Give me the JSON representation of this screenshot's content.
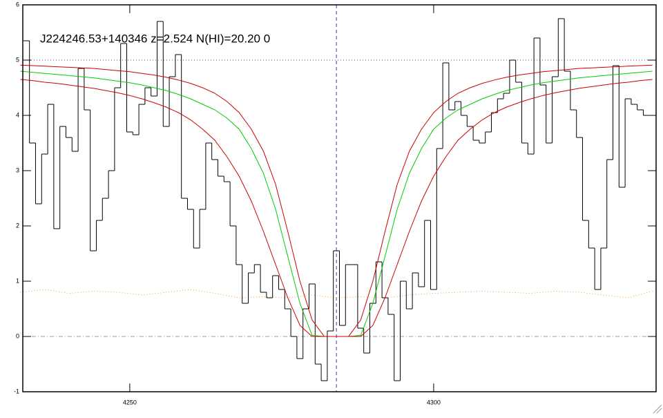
{
  "chart_data": {
    "type": "line",
    "title": "J224246.53+140346 z=2.524 N(HI)=20.20 0",
    "xlim": [
      4232.4,
      4336.6
    ],
    "ylim": [
      -1,
      6
    ],
    "xticks": [
      4250,
      4300
    ],
    "yticks": [
      -1,
      0,
      1,
      2,
      3,
      4,
      5,
      6
    ],
    "flux": {
      "color": "#000000",
      "x": [
        4233,
        4234,
        4235,
        4236,
        4237,
        4238,
        4239,
        4240,
        4241,
        4242,
        4243,
        4244,
        4245,
        4246,
        4247,
        4248,
        4249,
        4250,
        4251,
        4252,
        4253,
        4254,
        4255,
        4256,
        4257,
        4258,
        4259,
        4260,
        4261,
        4262,
        4263,
        4264,
        4265,
        4266,
        4267,
        4268,
        4269,
        4270,
        4271,
        4272,
        4273,
        4274,
        4275,
        4276,
        4277,
        4278,
        4279,
        4280,
        4281,
        4282,
        4283,
        4284,
        4285,
        4286,
        4287,
        4288,
        4289,
        4290,
        4291,
        4292,
        4293,
        4294,
        4295,
        4296,
        4297,
        4298,
        4299,
        4300,
        4301,
        4302,
        4303,
        4304,
        4305,
        4306,
        4307,
        4308,
        4309,
        4310,
        4311,
        4312,
        4313,
        4314,
        4315,
        4316,
        4317,
        4318,
        4319,
        4320,
        4321,
        4322,
        4323,
        4324,
        4325,
        4326,
        4327,
        4328,
        4329,
        4330,
        4331,
        4332,
        4333,
        4334,
        4335,
        4336
      ],
      "values": [
        5.35,
        3.5,
        2.4,
        3.3,
        4.2,
        1.95,
        3.8,
        3.6,
        3.35,
        4.85,
        4.1,
        1.55,
        2.1,
        2.5,
        3.0,
        4.5,
        5.3,
        3.7,
        3.65,
        4.2,
        4.5,
        4.35,
        5.7,
        3.8,
        4.7,
        5.1,
        2.5,
        2.3,
        1.6,
        2.3,
        3.5,
        3.2,
        2.9,
        2.8,
        2.0,
        1.3,
        0.6,
        1.15,
        1.3,
        0.8,
        0.7,
        1.1,
        0.85,
        0.5,
        0.0,
        -0.4,
        0.5,
        0.95,
        -0.5,
        -0.8,
        0.1,
        1.55,
        0.2,
        1.3,
        1.3,
        0.15,
        -0.3,
        0.6,
        1.35,
        0.7,
        0.4,
        -0.8,
        1.0,
        0.5,
        1.15,
        0.9,
        2.1,
        0.85,
        3.4,
        4.95,
        4.1,
        4.25,
        4.0,
        3.8,
        3.55,
        3.5,
        3.7,
        4.05,
        4.3,
        4.4,
        5.0,
        4.6,
        3.5,
        3.3,
        5.4,
        4.55,
        3.5,
        4.7,
        5.75,
        4.8,
        4.1,
        3.6,
        2.1,
        1.6,
        0.85,
        1.6,
        3.2,
        4.9,
        2.7,
        4.3,
        4.2,
        4.1,
        4.0,
        4.0
      ]
    },
    "model_x": [
      4232,
      4234,
      4236,
      4238,
      4240,
      4242,
      4244,
      4246,
      4248,
      4250,
      4252,
      4254,
      4256,
      4258,
      4260,
      4262,
      4264,
      4266,
      4268,
      4270,
      4272,
      4274,
      4276,
      4278,
      4280,
      4282,
      4284,
      4286,
      4288,
      4290,
      4292,
      4294,
      4296,
      4298,
      4300,
      4302,
      4304,
      4306,
      4308,
      4310,
      4312,
      4314,
      4316,
      4318,
      4320,
      4322,
      4324,
      4326,
      4328,
      4330,
      4332,
      4334,
      4336
    ],
    "series": [
      {
        "color": "#00cc00",
        "values": [
          4.8,
          4.78,
          4.76,
          4.74,
          4.72,
          4.7,
          4.68,
          4.65,
          4.62,
          4.59,
          4.55,
          4.5,
          4.45,
          4.38,
          4.3,
          4.2,
          4.1,
          3.95,
          3.75,
          3.4,
          2.95,
          2.3,
          1.45,
          0.6,
          0.02,
          0,
          0,
          0,
          0.02,
          0.6,
          1.45,
          2.3,
          2.95,
          3.4,
          3.75,
          3.95,
          4.1,
          4.2,
          4.3,
          4.38,
          4.45,
          4.5,
          4.55,
          4.59,
          4.62,
          4.65,
          4.68,
          4.7,
          4.72,
          4.74,
          4.76,
          4.78,
          4.8
        ]
      },
      {
        "color": "#cc0000",
        "values": [
          4.91,
          4.9,
          4.89,
          4.88,
          4.87,
          4.86,
          4.85,
          4.83,
          4.81,
          4.79,
          4.76,
          4.73,
          4.69,
          4.64,
          4.58,
          4.5,
          4.4,
          4.25,
          4.05,
          3.75,
          3.35,
          2.75,
          1.9,
          1.0,
          0.3,
          0,
          0,
          0,
          0.3,
          1.0,
          1.9,
          2.75,
          3.35,
          3.75,
          4.05,
          4.25,
          4.4,
          4.5,
          4.58,
          4.64,
          4.69,
          4.73,
          4.76,
          4.79,
          4.81,
          4.83,
          4.85,
          4.86,
          4.87,
          4.88,
          4.89,
          4.9,
          4.91
        ]
      },
      {
        "color": "#cc0000",
        "values": [
          4.65,
          4.63,
          4.6,
          4.58,
          4.55,
          4.52,
          4.49,
          4.45,
          4.41,
          4.36,
          4.3,
          4.23,
          4.15,
          4.05,
          3.92,
          3.75,
          3.55,
          3.25,
          2.9,
          2.45,
          1.9,
          1.3,
          0.7,
          0.2,
          0,
          0,
          0,
          0,
          0,
          0.2,
          0.7,
          1.3,
          1.9,
          2.45,
          2.9,
          3.25,
          3.55,
          3.75,
          3.92,
          4.05,
          4.15,
          4.23,
          4.3,
          4.36,
          4.41,
          4.45,
          4.49,
          4.52,
          4.55,
          4.58,
          4.6,
          4.63,
          4.65
        ]
      }
    ],
    "error": {
      "color": "#ff9933",
      "x": [
        4232,
        4236,
        4240,
        4244,
        4248,
        4252,
        4256,
        4260,
        4264,
        4268,
        4272,
        4276,
        4280,
        4284,
        4288,
        4292,
        4296,
        4300,
        4304,
        4308,
        4312,
        4316,
        4320,
        4324,
        4328,
        4332,
        4336
      ],
      "values": [
        0.8,
        0.85,
        0.78,
        0.82,
        0.8,
        0.75,
        0.8,
        0.85,
        0.78,
        0.7,
        0.72,
        0.7,
        0.75,
        0.7,
        0.72,
        0.7,
        0.75,
        0.78,
        0.8,
        0.82,
        0.8,
        0.78,
        0.82,
        0.8,
        0.75,
        0.7,
        0.82
      ]
    },
    "reference_lines": [
      {
        "axis": "y",
        "value": 5,
        "color": "#9933cc",
        "style": "dotted"
      },
      {
        "axis": "y",
        "value": 0,
        "color": "#999999",
        "style": "dashdot"
      },
      {
        "axis": "x",
        "value": 4284,
        "color": "#3333cc",
        "style": "dashed"
      }
    ]
  }
}
